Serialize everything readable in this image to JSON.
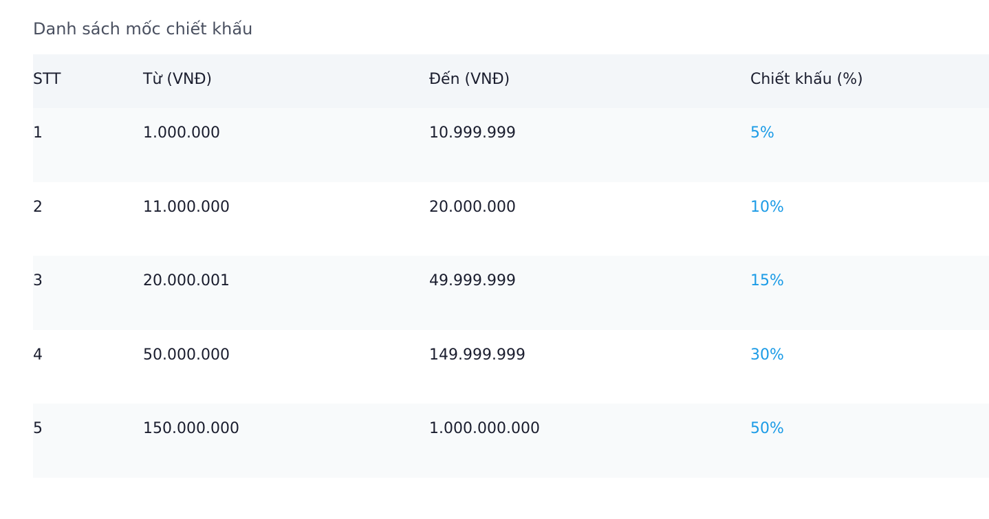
{
  "title": "Danh sách mốc chiết khấu",
  "table": {
    "headers": [
      "STT",
      "Từ (VNĐ)",
      "Đến (VNĐ)",
      "Chiết khấu (%)"
    ],
    "rows": [
      [
        "1",
        "1.000.000",
        "10.999.999",
        "5%"
      ],
      [
        "2",
        "11.000.000",
        "20.000.000",
        "10%"
      ],
      [
        "3",
        "20.000.001",
        "49.999.999",
        "15%"
      ],
      [
        "4",
        "50.000.000",
        "149.999.999",
        "30%"
      ],
      [
        "5",
        "150.000.000",
        "1.000.000.000",
        "50%"
      ]
    ]
  }
}
